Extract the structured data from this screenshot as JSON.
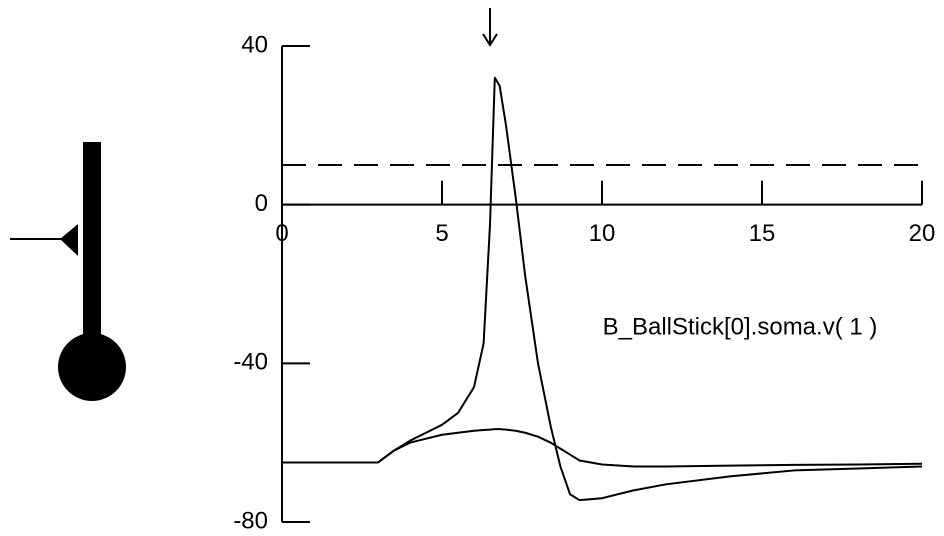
{
  "chart_data": {
    "type": "line",
    "x": [
      0,
      3,
      3.5,
      4,
      4.5,
      5,
      5.5,
      6,
      6.3,
      6.5,
      6.65,
      6.8,
      7,
      7.3,
      7.6,
      8,
      8.4,
      8.7,
      9,
      9.3,
      10,
      11,
      12,
      14,
      16,
      18,
      20
    ],
    "series": [
      {
        "color": "#000000",
        "values": [
          -65,
          -65,
          -62,
          -59.5,
          -57.5,
          -55.5,
          -52.5,
          -46,
          -35,
          -5,
          32,
          30,
          20,
          2,
          -18,
          -40,
          -56,
          -66,
          -73,
          -74.5,
          -74,
          -72,
          -70.5,
          -68.5,
          -67,
          -66.5,
          -66
        ]
      },
      {
        "color": "#000000",
        "values": [
          -65,
          -65,
          -62,
          -60,
          -59,
          -58,
          -57.5,
          -57,
          -56.8,
          -56.7,
          -56.6,
          -56.6,
          -56.7,
          -57,
          -57.5,
          -58.5,
          -60,
          -61.5,
          -63,
          -64.5,
          -65.5,
          -66,
          -66,
          -65.8,
          -65.6,
          -65.5,
          -65.3
        ]
      }
    ],
    "label": "B_BallStick[0].soma.v( 1 )",
    "threshold": 10,
    "arrow_x": 6.5,
    "xlim": [
      0,
      20
    ],
    "xticks": [
      0,
      5,
      10,
      15,
      20
    ],
    "ylim": [
      -80,
      40
    ],
    "yticks": [
      -80,
      -40,
      0,
      40
    ]
  }
}
